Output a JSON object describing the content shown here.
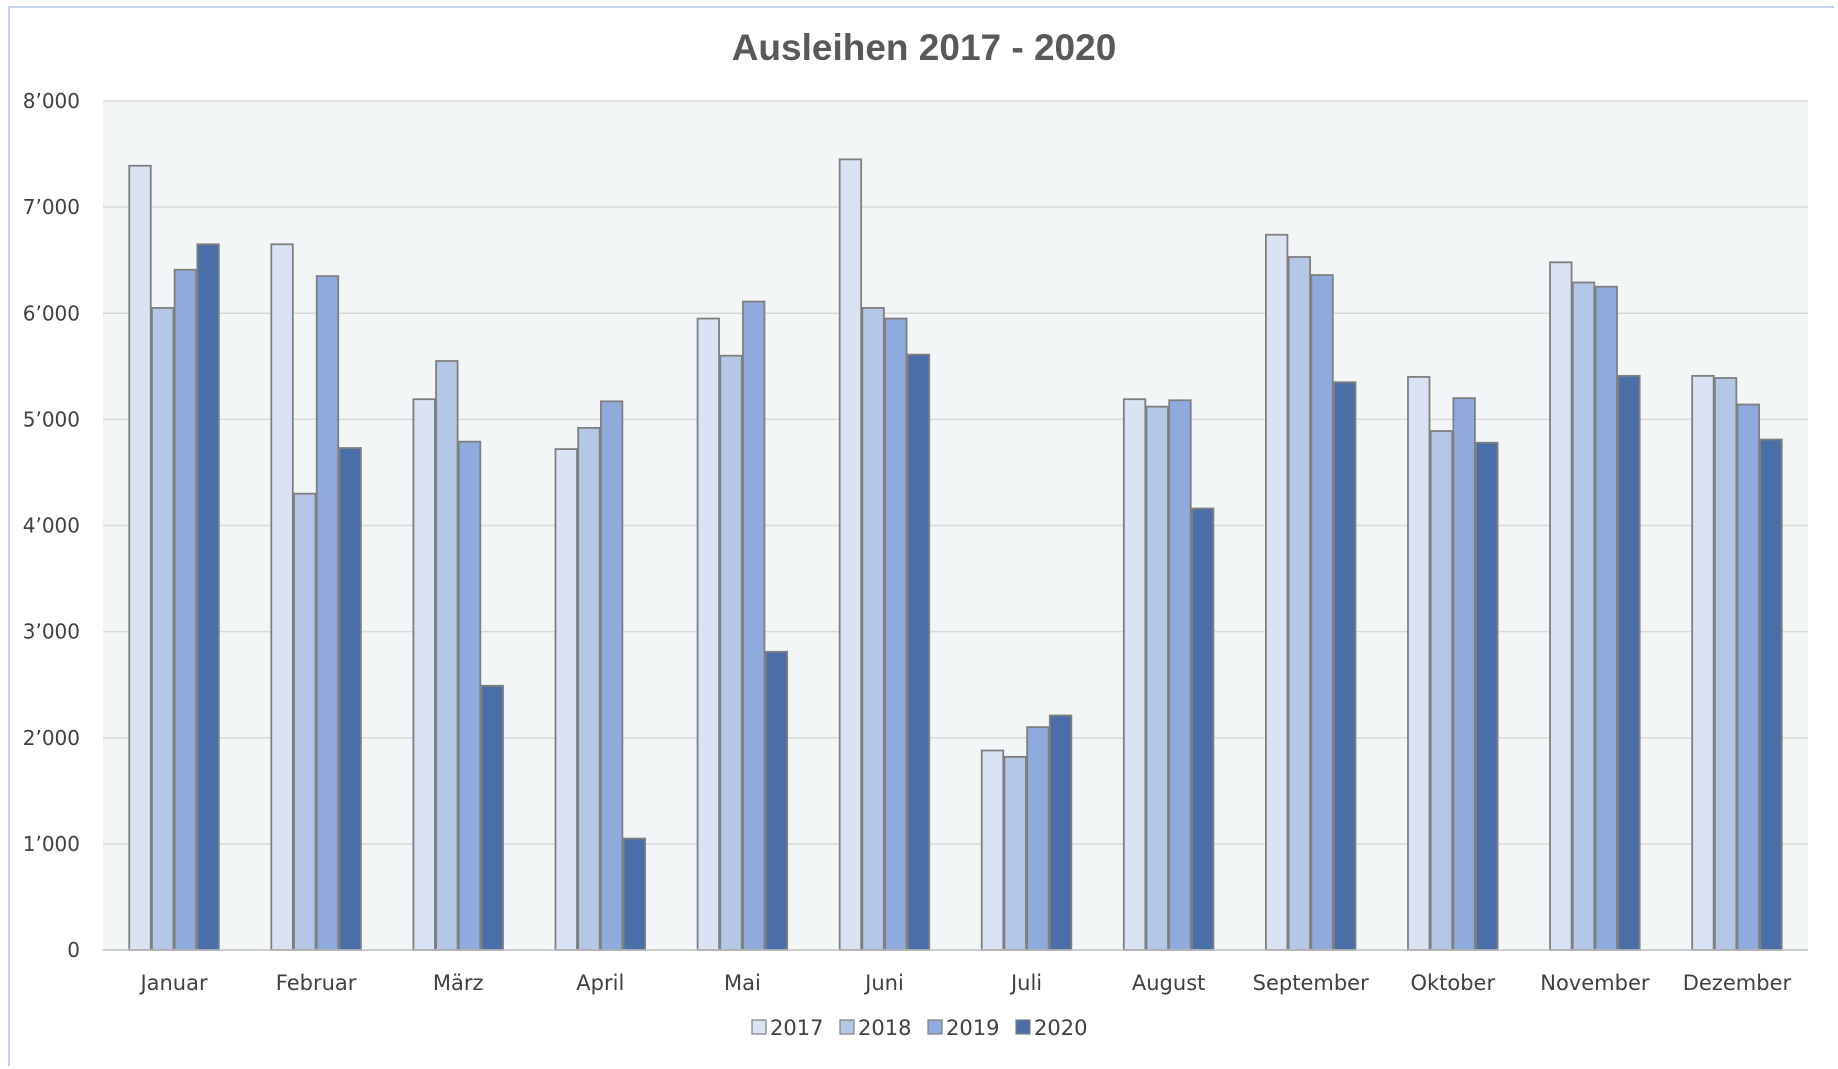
{
  "chart_data": {
    "type": "bar",
    "title": "Ausleihen 2017 - 2020",
    "xlabel": "",
    "ylabel": "",
    "ylim": [
      0,
      8000
    ],
    "yticks": [
      {
        "value": 0,
        "label": "0"
      },
      {
        "value": 1000,
        "label": "1’000"
      },
      {
        "value": 2000,
        "label": "2’000"
      },
      {
        "value": 3000,
        "label": "3’000"
      },
      {
        "value": 4000,
        "label": "4’000"
      },
      {
        "value": 5000,
        "label": "5’000"
      },
      {
        "value": 6000,
        "label": "6’000"
      },
      {
        "value": 7000,
        "label": "7’000"
      },
      {
        "value": 8000,
        "label": "8’000"
      }
    ],
    "grid": true,
    "legend_position": "bottom",
    "categories": [
      "Januar",
      "Februar",
      "März",
      "April",
      "Mai",
      "Juni",
      "Juli",
      "August",
      "September",
      "Oktober",
      "November",
      "Dezember"
    ],
    "series": [
      {
        "name": "2017",
        "color": "#dae3f3",
        "values": [
          7390,
          6650,
          5190,
          4720,
          5950,
          7450,
          1880,
          5190,
          6740,
          5400,
          6480,
          5410
        ]
      },
      {
        "name": "2018",
        "color": "#b4c7e7",
        "values": [
          6050,
          4300,
          5550,
          4920,
          5600,
          6050,
          1820,
          5120,
          6530,
          4890,
          6290,
          5390
        ]
      },
      {
        "name": "2019",
        "color": "#8faadc",
        "values": [
          6410,
          6350,
          4790,
          5170,
          6110,
          5950,
          2100,
          5180,
          6360,
          5200,
          6250,
          5140
        ]
      },
      {
        "name": "2020",
        "color": "#4a6fa8",
        "values": [
          6650,
          4730,
          2490,
          1050,
          2810,
          5610,
          2210,
          4160,
          5350,
          4780,
          5410,
          4810
        ]
      }
    ],
    "plot_background": "#f3f6f7",
    "grid_color": "#d9d9d9",
    "bar_outline": "#7f7f7f"
  }
}
